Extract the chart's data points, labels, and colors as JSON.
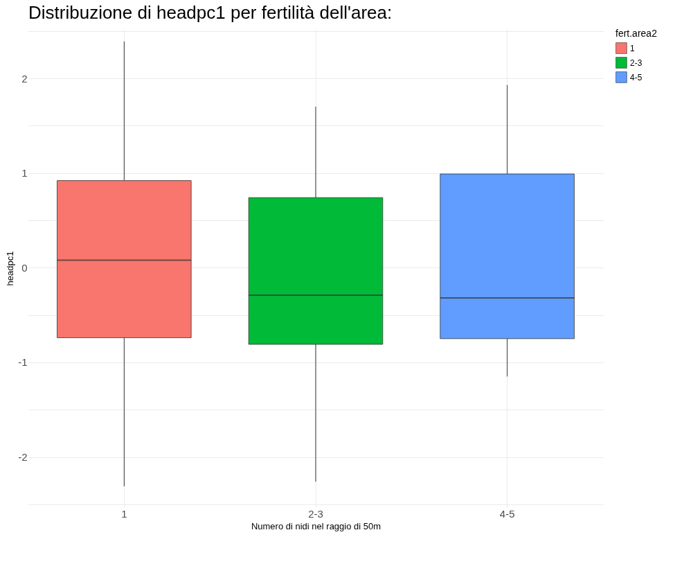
{
  "chart_data": {
    "type": "box",
    "title": "Distribuzione di headpc1 per fertilità dell'area:",
    "xlabel": "Numero di nidi nel raggio di 50m",
    "ylabel": "headpc1",
    "legend_title": "fert.area2",
    "categories": [
      "1",
      "2-3",
      "4-5"
    ],
    "series": [
      {
        "name": "1",
        "color": "#f8766d",
        "boxes": [
          {
            "low": -2.31,
            "q1": -0.74,
            "median": 0.08,
            "q3": 0.92,
            "high": 2.39
          },
          null,
          null
        ]
      },
      {
        "name": "2-3",
        "color": "#00ba38",
        "boxes": [
          null,
          {
            "low": -2.26,
            "q1": -0.81,
            "median": -0.29,
            "q3": 0.74,
            "high": 1.7
          },
          null
        ]
      },
      {
        "name": "4-5",
        "color": "#619cff",
        "boxes": [
          null,
          null,
          {
            "low": -1.15,
            "q1": -0.75,
            "median": -0.32,
            "q3": 0.99,
            "high": 1.93
          }
        ]
      }
    ],
    "ylim": [
      -2.53,
      2.52
    ],
    "yticks": [
      {
        "value": -2.5,
        "label": null
      },
      -2,
      {
        "value": -1.5,
        "label": null
      },
      -1,
      {
        "value": -0.5,
        "label": null
      },
      0,
      {
        "value": 0.5,
        "label": null
      },
      1,
      {
        "value": 1.5,
        "label": null
      },
      2,
      {
        "value": 2.5,
        "label": null
      }
    ],
    "grid": true,
    "legend": "right"
  }
}
